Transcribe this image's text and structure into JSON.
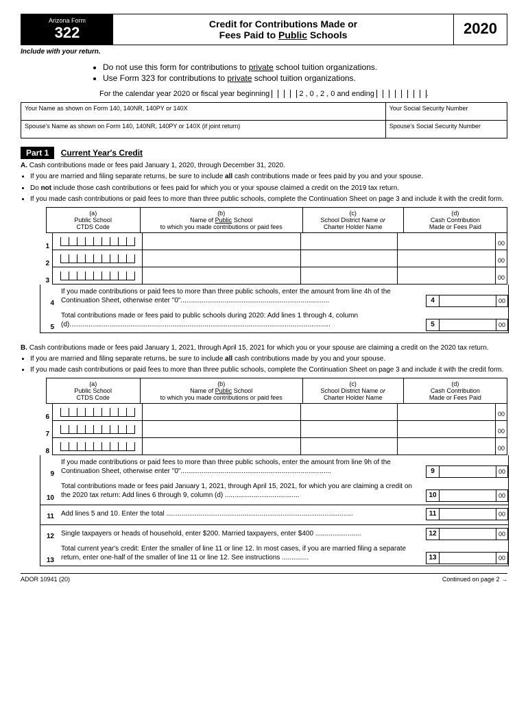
{
  "header": {
    "state_label": "Arizona Form",
    "form_no": "322",
    "title_l1": "Credit for Contributions Made or",
    "title_l2": "Fees Paid to <u>Public</u> Schools",
    "year": "2020"
  },
  "include_note": "Include with your return.",
  "top_bullets": [
    "Do not use this form for contributions to <span class='u'>private</span> school tuition organizations.",
    "Use Form 323 for contributions to <span class='u'>private</span> school tuition organizations."
  ],
  "calendar_line": "For the calendar year 2020 or fiscal year beginning",
  "calendar_mid": "and ending",
  "name_table": {
    "r1c1": "Your Name as shown on Form 140, 140NR, 140PY or 140X",
    "r1c2": "Your Social Security Number",
    "r2c1": "Spouse's Name as shown on Form 140, 140NR, 140PY or 140X (if joint return)",
    "r2c2": "Spouse's Social Security Number"
  },
  "part1": {
    "label": "Part 1",
    "title": "Current Year's Credit"
  },
  "secA": {
    "lead": "A.",
    "lead_text": "Cash contributions made or fees paid January 1, 2020, through December 31, 2020.",
    "bullets": [
      "If you are married and filing separate returns, be sure to include <b>all</b> cash contributions made or fees paid by you and your spouse.",
      "Do <b>not</b> include those cash contributions or fees paid for which you or your spouse claimed a credit on the 2019 tax return.",
      "If you made cash contributions or paid fees to more than three public schools, complete the Continuation Sheet on page 3 and include it with the credit form."
    ]
  },
  "cols": {
    "a": "(a)<br>Public School<br>CTDS Code",
    "b": "(b)<br>Name of <span class='u'>Public</span> School<br>to which you made contributions or paid fees",
    "c": "(c)<br>School District Name <i>or</i><br>Charter Holder Name",
    "d": "(d)<br>Cash Contribution<br>Made or Fees Paid"
  },
  "rowsA": [
    "1",
    "2",
    "3"
  ],
  "line4": "If you made contributions or paid fees to more than three public schools, enter the amount from line 4h of the Continuation Sheet, otherwise enter \"0\"..............................................................................",
  "line5": "Total contributions made or fees paid to public schools during 2020:  Add lines 1 through 4, column (d).........................................................................................................................................",
  "secB": {
    "lead": "B.",
    "lead_text": "Cash contributions made or fees paid January 1, 2021, through April 15, 2021 for which you or your spouse are claiming a credit on the 2020 tax return.",
    "bullets": [
      "If you are married and filing separate returns, be sure to include <b>all</b> cash contributions made by you and your spouse.",
      "If you made cash contributions or paid fees to more than three public schools, complete the Continuation Sheet on page 3 and include it with the credit form."
    ]
  },
  "rowsB": [
    "6",
    "7",
    "8"
  ],
  "line9": "If you made contributions or paid fees to more than three public schools, enter the amount from line 9h of the Continuation Sheet, otherwise enter \"0\"...............................................................................",
  "line10": "Total contributions made or fees paid January 1, 2021, through April 15, 2021, for which you are claiming a credit on the 2020 tax return:  Add lines 6 through 9, column (d) .......................................",
  "line11": "Add lines 5 and 10.  Enter the total ..................................................................................................",
  "line12": "Single taxpayers or heads of household, enter $200.  Married taxpayers, enter $400 ........................",
  "line13": "Total current year's credit:  Enter the smaller of line 11 or line 12.  In most cases, if you are married filing a separate return, enter one-half of the smaller of line 11 or line 12.  See instructions ..............",
  "footer": {
    "left": "ADOR 10941 (20)",
    "right": "Continued on page 2 →"
  }
}
